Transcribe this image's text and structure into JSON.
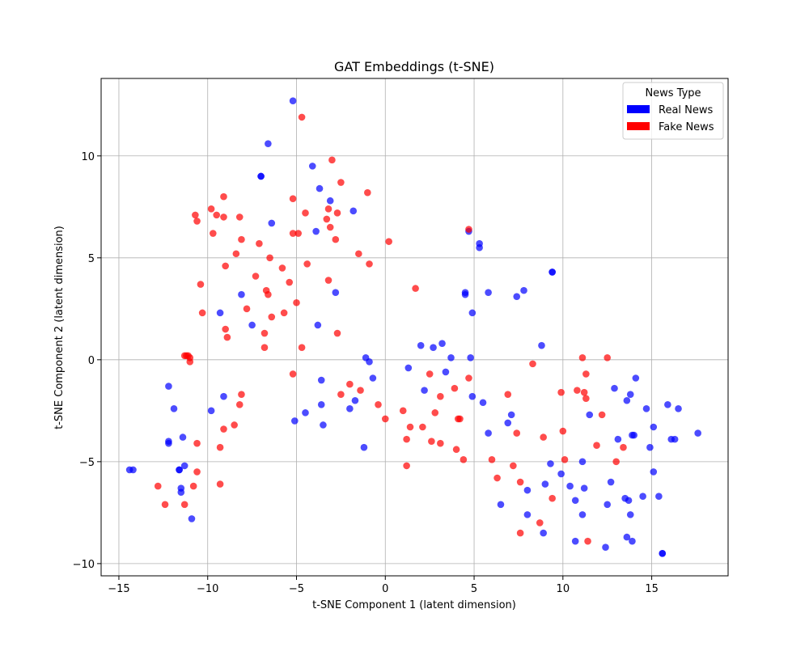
{
  "chart_data": {
    "type": "scatter",
    "title": "GAT Embeddings (t-SNE)",
    "xlabel": "t-SNE Component 1 (latent dimension)",
    "ylabel": "t-SNE Component 2 (latent dimension)",
    "xlim": [
      -16,
      19.3
    ],
    "ylim": [
      -10.6,
      13.8
    ],
    "xticks": [
      -15,
      -10,
      -5,
      0,
      5,
      10,
      15
    ],
    "yticks": [
      -10,
      -5,
      0,
      5,
      10
    ],
    "grid": true,
    "legend": {
      "title": "News Type",
      "position": "top-right"
    },
    "series": [
      {
        "name": "Real News",
        "color": "#0000ff",
        "points": [
          [
            -14.4,
            -5.4
          ],
          [
            -14.2,
            -5.4
          ],
          [
            -12.2,
            -1.3
          ],
          [
            -12.2,
            -4.0
          ],
          [
            -12.2,
            -4.1
          ],
          [
            -11.9,
            -2.4
          ],
          [
            -11.6,
            -5.4
          ],
          [
            -11.6,
            -5.4
          ],
          [
            -11.5,
            -6.3
          ],
          [
            -11.5,
            -6.5
          ],
          [
            -11.4,
            -3.8
          ],
          [
            -11.3,
            -5.2
          ],
          [
            -10.9,
            -7.8
          ],
          [
            -9.8,
            -2.5
          ],
          [
            -9.3,
            2.3
          ],
          [
            -9.1,
            -1.8
          ],
          [
            -8.1,
            3.2
          ],
          [
            -7.5,
            1.7
          ],
          [
            -7.0,
            9.0
          ],
          [
            -7.0,
            9.0
          ],
          [
            -6.6,
            10.6
          ],
          [
            -6.4,
            6.7
          ],
          [
            -5.2,
            12.7
          ],
          [
            -5.1,
            -3.0
          ],
          [
            -4.5,
            -2.6
          ],
          [
            -4.1,
            9.5
          ],
          [
            -3.9,
            6.3
          ],
          [
            -3.8,
            1.7
          ],
          [
            -3.7,
            8.4
          ],
          [
            -3.6,
            -1.0
          ],
          [
            -3.6,
            -2.2
          ],
          [
            -3.5,
            -3.2
          ],
          [
            -3.1,
            7.8
          ],
          [
            -2.8,
            3.3
          ],
          [
            -2.0,
            -2.4
          ],
          [
            -1.8,
            7.3
          ],
          [
            -1.7,
            -2.0
          ],
          [
            -1.2,
            -4.3
          ],
          [
            -1.1,
            0.1
          ],
          [
            -0.9,
            -0.1
          ],
          [
            -0.7,
            -0.9
          ],
          [
            1.3,
            -0.4
          ],
          [
            2.0,
            0.7
          ],
          [
            2.2,
            -1.5
          ],
          [
            2.7,
            0.6
          ],
          [
            3.2,
            0.8
          ],
          [
            3.4,
            -0.6
          ],
          [
            3.7,
            0.1
          ],
          [
            4.5,
            3.3
          ],
          [
            4.5,
            3.2
          ],
          [
            4.7,
            6.3
          ],
          [
            4.8,
            0.1
          ],
          [
            4.9,
            2.3
          ],
          [
            4.9,
            -1.8
          ],
          [
            5.3,
            5.7
          ],
          [
            5.3,
            5.5
          ],
          [
            5.5,
            -2.1
          ],
          [
            5.8,
            3.3
          ],
          [
            5.8,
            -3.6
          ],
          [
            6.5,
            -7.1
          ],
          [
            6.9,
            -3.1
          ],
          [
            7.1,
            -2.7
          ],
          [
            7.4,
            3.1
          ],
          [
            7.8,
            3.4
          ],
          [
            8.0,
            -6.4
          ],
          [
            8.0,
            -7.6
          ],
          [
            8.8,
            0.7
          ],
          [
            8.9,
            -8.5
          ],
          [
            9.0,
            -6.1
          ],
          [
            9.3,
            -5.1
          ],
          [
            9.4,
            4.3
          ],
          [
            9.4,
            4.3
          ],
          [
            9.9,
            -5.6
          ],
          [
            10.4,
            -6.2
          ],
          [
            10.7,
            -6.9
          ],
          [
            10.7,
            -8.9
          ],
          [
            11.1,
            -5.0
          ],
          [
            11.1,
            -7.6
          ],
          [
            11.2,
            -6.3
          ],
          [
            11.5,
            -2.7
          ],
          [
            12.4,
            -9.2
          ],
          [
            12.5,
            -7.1
          ],
          [
            12.7,
            -6.0
          ],
          [
            12.9,
            -1.4
          ],
          [
            13.1,
            -3.9
          ],
          [
            13.5,
            -6.8
          ],
          [
            13.6,
            -2.0
          ],
          [
            13.6,
            -8.7
          ],
          [
            13.7,
            -6.9
          ],
          [
            13.8,
            -1.7
          ],
          [
            13.8,
            -7.6
          ],
          [
            13.9,
            -3.7
          ],
          [
            13.9,
            -8.9
          ],
          [
            14.0,
            -3.7
          ],
          [
            14.1,
            -0.9
          ],
          [
            14.5,
            -6.7
          ],
          [
            14.7,
            -2.4
          ],
          [
            14.9,
            -4.3
          ],
          [
            15.1,
            -3.3
          ],
          [
            15.1,
            -5.5
          ],
          [
            15.4,
            -6.7
          ],
          [
            15.6,
            -9.5
          ],
          [
            15.6,
            -9.5
          ],
          [
            15.9,
            -2.2
          ],
          [
            16.1,
            -3.9
          ],
          [
            16.3,
            -3.9
          ],
          [
            16.5,
            -2.4
          ],
          [
            17.6,
            -3.6
          ]
        ]
      },
      {
        "name": "Fake News",
        "color": "#ff0000",
        "points": [
          [
            -12.8,
            -6.2
          ],
          [
            -12.4,
            -7.1
          ],
          [
            -11.3,
            -7.1
          ],
          [
            -11.3,
            0.2
          ],
          [
            -11.2,
            0.2
          ],
          [
            -11.1,
            0.2
          ],
          [
            -11.0,
            0.1
          ],
          [
            -11.0,
            -0.1
          ],
          [
            -10.8,
            -6.2
          ],
          [
            -10.7,
            7.1
          ],
          [
            -10.6,
            6.8
          ],
          [
            -10.6,
            -4.1
          ],
          [
            -10.6,
            -5.5
          ],
          [
            -10.4,
            3.7
          ],
          [
            -10.3,
            2.3
          ],
          [
            -9.8,
            7.4
          ],
          [
            -9.7,
            6.2
          ],
          [
            -9.5,
            7.1
          ],
          [
            -9.3,
            -4.3
          ],
          [
            -9.3,
            -6.1
          ],
          [
            -9.1,
            7.0
          ],
          [
            -9.1,
            8.0
          ],
          [
            -9.1,
            -3.4
          ],
          [
            -9.0,
            4.6
          ],
          [
            -9.0,
            1.5
          ],
          [
            -8.9,
            1.1
          ],
          [
            -8.5,
            -3.2
          ],
          [
            -8.4,
            5.2
          ],
          [
            -8.2,
            7.0
          ],
          [
            -8.2,
            -2.2
          ],
          [
            -8.1,
            5.9
          ],
          [
            -8.1,
            -1.7
          ],
          [
            -7.8,
            2.5
          ],
          [
            -7.3,
            4.1
          ],
          [
            -7.1,
            5.7
          ],
          [
            -6.8,
            0.6
          ],
          [
            -6.8,
            1.3
          ],
          [
            -6.7,
            3.4
          ],
          [
            -6.6,
            3.2
          ],
          [
            -6.5,
            5.0
          ],
          [
            -6.4,
            2.1
          ],
          [
            -5.8,
            4.5
          ],
          [
            -5.7,
            2.3
          ],
          [
            -5.4,
            3.8
          ],
          [
            -5.2,
            7.9
          ],
          [
            -5.2,
            6.2
          ],
          [
            -5.2,
            -0.7
          ],
          [
            -5.0,
            2.8
          ],
          [
            -4.9,
            6.2
          ],
          [
            -4.7,
            11.9
          ],
          [
            -4.7,
            0.6
          ],
          [
            -4.5,
            7.2
          ],
          [
            -4.4,
            4.7
          ],
          [
            -3.3,
            6.9
          ],
          [
            -3.2,
            3.9
          ],
          [
            -3.2,
            7.4
          ],
          [
            -3.1,
            6.5
          ],
          [
            -3.0,
            9.8
          ],
          [
            -2.8,
            5.9
          ],
          [
            -2.7,
            7.2
          ],
          [
            -2.7,
            1.3
          ],
          [
            -2.5,
            8.7
          ],
          [
            -2.5,
            -1.7
          ],
          [
            -2.0,
            -1.2
          ],
          [
            -1.5,
            5.2
          ],
          [
            -1.4,
            -1.5
          ],
          [
            -1.0,
            8.2
          ],
          [
            -0.9,
            4.7
          ],
          [
            -0.4,
            -2.2
          ],
          [
            0.0,
            -2.9
          ],
          [
            0.2,
            5.8
          ],
          [
            1.0,
            -2.5
          ],
          [
            1.2,
            -3.9
          ],
          [
            1.2,
            -5.2
          ],
          [
            1.4,
            -3.3
          ],
          [
            1.7,
            3.5
          ],
          [
            2.1,
            -3.3
          ],
          [
            2.5,
            -0.7
          ],
          [
            2.6,
            -4.0
          ],
          [
            2.8,
            -2.6
          ],
          [
            3.1,
            -1.8
          ],
          [
            3.1,
            -4.1
          ],
          [
            3.9,
            -1.4
          ],
          [
            4.0,
            -4.4
          ],
          [
            4.1,
            -2.9
          ],
          [
            4.2,
            -2.9
          ],
          [
            4.4,
            -4.9
          ],
          [
            4.7,
            6.4
          ],
          [
            4.7,
            -0.9
          ],
          [
            6.0,
            -4.9
          ],
          [
            6.3,
            -5.8
          ],
          [
            6.9,
            -1.7
          ],
          [
            7.2,
            -5.2
          ],
          [
            7.4,
            -3.6
          ],
          [
            7.6,
            -6.0
          ],
          [
            7.6,
            -8.5
          ],
          [
            8.3,
            -0.2
          ],
          [
            8.7,
            -8.0
          ],
          [
            8.9,
            -3.8
          ],
          [
            9.4,
            -6.8
          ],
          [
            9.9,
            -1.6
          ],
          [
            10.0,
            -3.5
          ],
          [
            10.1,
            -4.9
          ],
          [
            10.8,
            -1.5
          ],
          [
            11.1,
            0.1
          ],
          [
            11.2,
            -1.6
          ],
          [
            11.3,
            -0.7
          ],
          [
            11.3,
            -1.9
          ],
          [
            11.4,
            -8.9
          ],
          [
            11.9,
            -4.2
          ],
          [
            12.2,
            -2.7
          ],
          [
            12.5,
            0.1
          ],
          [
            13.0,
            -5.0
          ],
          [
            13.4,
            -4.3
          ]
        ]
      }
    ]
  }
}
